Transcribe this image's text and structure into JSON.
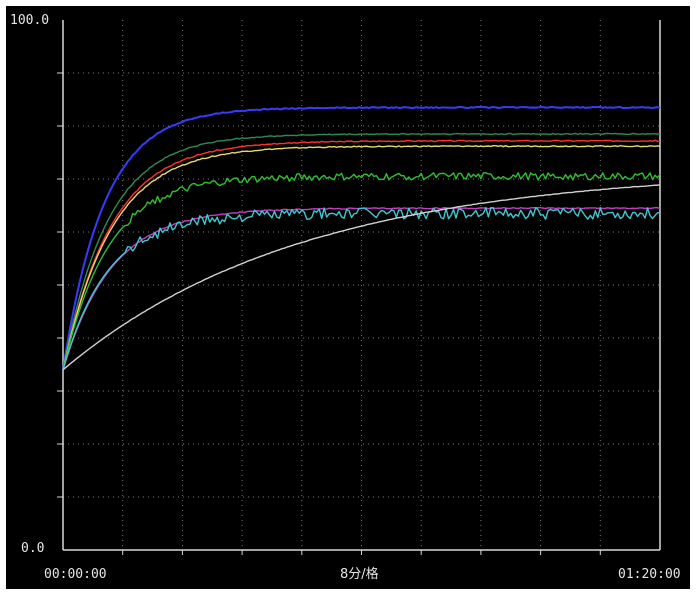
{
  "chart_data": {
    "type": "line",
    "title": "",
    "y_axis": {
      "min_label": "0.0",
      "max_label": "100.0",
      "ylim": [
        0,
        100
      ],
      "divisions": 10
    },
    "x_axis": {
      "start_label": "00:00:00",
      "end_label": "01:20:00",
      "center_label": "8分/格",
      "xlim_minutes": [
        0,
        80
      ],
      "divisions": 10
    },
    "grid": "dotted",
    "background": "#000000",
    "series": [
      {
        "color": "#3a3aff",
        "start": 34,
        "plateau": 83.5,
        "tau": 5.5,
        "noise": 0.05,
        "points": [
          [
            0,
            34
          ],
          [
            4,
            66
          ],
          [
            8,
            78
          ],
          [
            16,
            82.5
          ],
          [
            24,
            83.3
          ],
          [
            40,
            83.6
          ],
          [
            60,
            83.6
          ],
          [
            80,
            83.2
          ]
        ]
      },
      {
        "color": "#2e8b57",
        "start": 34,
        "plateau": 78.5,
        "tau": 6,
        "noise": 0.05,
        "points": [
          [
            0,
            34
          ],
          [
            8,
            72
          ],
          [
            16,
            77.5
          ],
          [
            40,
            78.5
          ],
          [
            80,
            78.5
          ]
        ]
      },
      {
        "color": "#ff3030",
        "start": 34,
        "plateau": 77.2,
        "tau": 6.5,
        "noise": 0.05,
        "points": [
          [
            0,
            34
          ],
          [
            8,
            70
          ],
          [
            16,
            76
          ],
          [
            40,
            77.2
          ],
          [
            80,
            76.8
          ]
        ]
      },
      {
        "color": "#e8d870",
        "start": 34,
        "plateau": 76.2,
        "tau": 6.5,
        "noise": 0.05,
        "points": [
          [
            0,
            34
          ],
          [
            8,
            69
          ],
          [
            16,
            75
          ],
          [
            40,
            76.2
          ],
          [
            80,
            75.9
          ]
        ]
      },
      {
        "color": "#30c030",
        "start": 34,
        "plateau": 70.5,
        "tau": 6,
        "noise": 0.35,
        "points": [
          [
            0,
            34
          ],
          [
            8,
            64
          ],
          [
            16,
            69.5
          ],
          [
            40,
            70.5
          ],
          [
            80,
            70.5
          ]
        ]
      },
      {
        "color": "#c040c0",
        "start": 34,
        "plateau": 64.5,
        "tau": 6.5,
        "noise": 0.05,
        "points": [
          [
            0,
            34
          ],
          [
            8,
            58
          ],
          [
            16,
            63.5
          ],
          [
            40,
            64.5
          ],
          [
            80,
            64.5
          ]
        ]
      },
      {
        "color": "#40c8d0",
        "start": 34,
        "plateau": 63.5,
        "tau": 6,
        "noise": 0.55,
        "points": [
          [
            0,
            34
          ],
          [
            8,
            58
          ],
          [
            16,
            62.5
          ],
          [
            40,
            63.2
          ],
          [
            80,
            63.5
          ]
        ]
      },
      {
        "color": "#d0d0d0",
        "start": 34,
        "plateau": 72,
        "tau": 32,
        "noise": 0.02,
        "points": [
          [
            0,
            34
          ],
          [
            4,
            42
          ],
          [
            16,
            50
          ],
          [
            32,
            56
          ],
          [
            48,
            60
          ],
          [
            64,
            62.5
          ],
          [
            80,
            63.5
          ]
        ]
      }
    ]
  }
}
